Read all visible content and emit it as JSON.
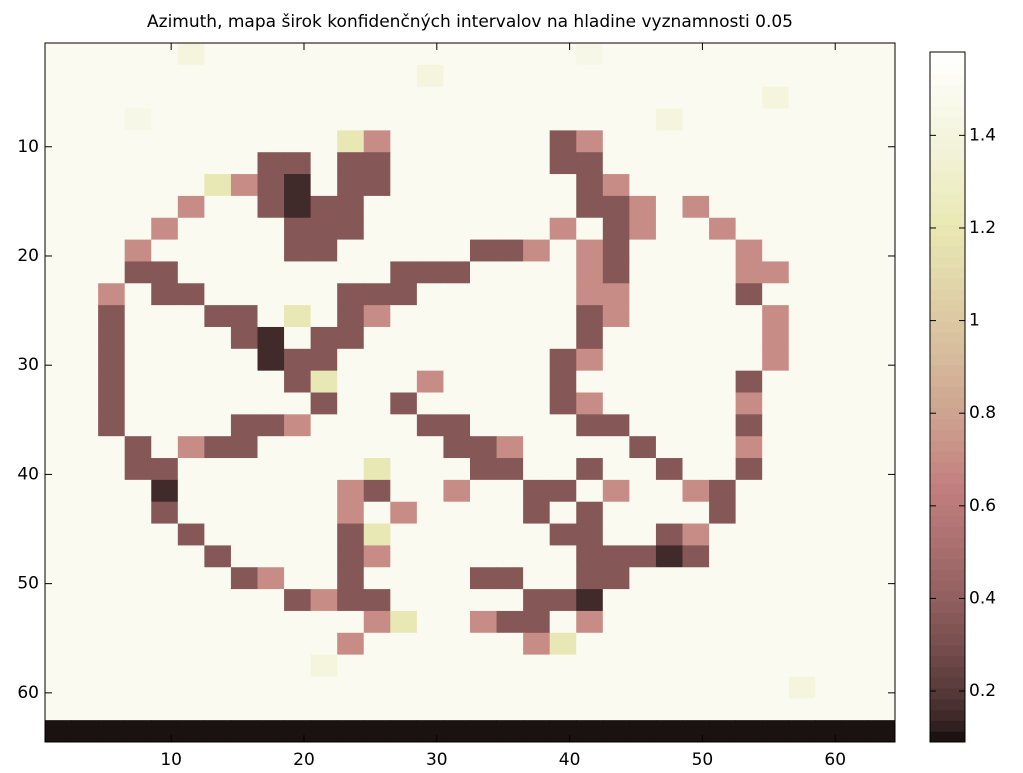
{
  "chart_data": {
    "type": "heatmap",
    "title": "Azimuth, mapa širok konfidenčných intervalov na hladine vyznamnosti 0.05",
    "colormap": "pink",
    "xlim": [
      0.5,
      64.5
    ],
    "ylim": [
      0.5,
      64.5
    ],
    "y_reversed": true,
    "xticks": [
      10,
      20,
      30,
      40,
      50,
      60
    ],
    "yticks": [
      10,
      20,
      30,
      40,
      50,
      60
    ],
    "clim": [
      0.09,
      1.58
    ],
    "cticks": [
      0.2,
      0.4,
      0.6,
      0.8,
      1,
      1.2,
      1.4
    ],
    "z": [
      [
        1.5,
        1.5,
        1.5,
        1.5,
        1.5,
        1.4,
        1.5,
        1.5,
        1.5,
        1.5,
        1.5,
        1.5,
        1.5,
        1.5,
        1.5,
        1.5,
        1.5,
        1.5,
        1.5,
        1.5,
        1.45,
        1.5,
        1.5,
        1.5,
        1.5,
        1.5,
        1.5,
        1.5,
        1.5,
        1.5,
        1.5,
        1.5
      ],
      [
        1.5,
        1.5,
        1.5,
        1.5,
        1.5,
        1.5,
        1.5,
        1.5,
        1.5,
        1.5,
        1.5,
        1.5,
        1.5,
        1.5,
        1.4,
        1.5,
        1.5,
        1.5,
        1.5,
        1.5,
        1.5,
        1.5,
        1.5,
        1.5,
        1.5,
        1.5,
        1.5,
        1.5,
        1.5,
        1.5,
        1.5,
        1.5
      ],
      [
        1.5,
        1.5,
        1.5,
        1.5,
        1.5,
        1.5,
        1.5,
        1.5,
        1.5,
        1.5,
        1.5,
        1.5,
        1.5,
        1.5,
        1.5,
        1.5,
        1.5,
        1.5,
        1.5,
        1.5,
        1.5,
        1.5,
        1.5,
        1.5,
        1.5,
        1.5,
        1.5,
        1.4,
        1.5,
        1.5,
        1.5,
        1.5
      ],
      [
        1.5,
        1.5,
        1.5,
        1.45,
        1.5,
        1.5,
        1.5,
        1.5,
        1.5,
        1.5,
        1.5,
        1.5,
        1.5,
        1.5,
        1.5,
        1.5,
        1.5,
        1.5,
        1.5,
        1.5,
        1.5,
        1.5,
        1.5,
        1.4,
        1.5,
        1.5,
        1.5,
        1.5,
        1.5,
        1.5,
        1.5,
        1.5
      ],
      [
        1.5,
        1.5,
        1.5,
        1.5,
        1.5,
        1.5,
        1.5,
        1.5,
        1.5,
        1.5,
        1.5,
        1.2,
        0.7,
        1.5,
        1.5,
        1.5,
        1.5,
        1.5,
        1.5,
        0.35,
        0.7,
        1.5,
        1.5,
        1.5,
        1.5,
        1.5,
        1.5,
        1.5,
        1.5,
        1.5,
        1.5,
        1.5
      ],
      [
        1.5,
        1.5,
        1.5,
        1.5,
        1.5,
        1.5,
        1.5,
        1.5,
        0.35,
        0.35,
        1.5,
        0.35,
        0.35,
        1.5,
        1.5,
        1.5,
        1.5,
        1.5,
        1.5,
        0.35,
        0.35,
        1.5,
        1.5,
        1.5,
        1.5,
        1.5,
        1.5,
        1.5,
        1.5,
        1.5,
        1.5,
        1.5
      ],
      [
        1.5,
        1.5,
        1.5,
        1.5,
        1.5,
        1.5,
        1.2,
        0.7,
        0.35,
        0.15,
        1.5,
        0.35,
        0.35,
        1.5,
        1.5,
        1.5,
        1.5,
        1.5,
        1.5,
        1.5,
        0.35,
        0.7,
        1.5,
        1.5,
        1.5,
        1.5,
        1.5,
        1.5,
        1.5,
        1.5,
        1.5,
        1.5
      ],
      [
        1.5,
        1.5,
        1.5,
        1.5,
        1.5,
        0.7,
        1.5,
        1.5,
        0.35,
        0.15,
        0.35,
        0.35,
        1.5,
        1.5,
        1.5,
        1.5,
        1.5,
        1.5,
        1.5,
        1.5,
        0.35,
        0.35,
        0.7,
        1.5,
        0.7,
        1.5,
        1.5,
        1.5,
        1.5,
        1.5,
        1.5,
        1.5
      ],
      [
        1.5,
        1.5,
        1.5,
        1.5,
        0.7,
        1.5,
        1.5,
        1.5,
        1.5,
        0.35,
        0.35,
        0.35,
        1.5,
        1.5,
        1.5,
        1.5,
        1.5,
        1.5,
        1.5,
        0.7,
        1.5,
        0.35,
        0.7,
        1.5,
        1.5,
        0.7,
        1.5,
        1.5,
        1.5,
        1.5,
        1.5,
        1.5
      ],
      [
        1.5,
        1.5,
        1.5,
        0.7,
        1.5,
        1.5,
        1.5,
        1.5,
        1.5,
        0.35,
        0.35,
        1.5,
        1.5,
        1.5,
        1.5,
        1.5,
        0.35,
        0.35,
        0.7,
        1.5,
        0.7,
        0.35,
        1.5,
        1.5,
        1.5,
        1.5,
        0.7,
        1.5,
        1.5,
        1.5,
        1.5,
        1.5
      ],
      [
        1.5,
        1.5,
        1.5,
        0.35,
        0.35,
        1.5,
        1.5,
        1.5,
        1.5,
        1.5,
        1.5,
        1.5,
        1.5,
        0.35,
        0.35,
        0.35,
        1.5,
        1.5,
        1.5,
        1.5,
        0.7,
        0.35,
        1.5,
        1.5,
        1.5,
        1.5,
        0.7,
        0.7,
        1.5,
        1.5,
        1.5,
        1.5
      ],
      [
        1.5,
        1.5,
        0.7,
        1.5,
        0.35,
        0.35,
        1.5,
        1.5,
        1.5,
        1.5,
        1.5,
        0.35,
        0.35,
        0.35,
        1.5,
        1.5,
        1.5,
        1.5,
        1.5,
        1.5,
        0.7,
        0.7,
        1.5,
        1.5,
        1.5,
        1.5,
        0.35,
        1.5,
        1.5,
        1.5,
        1.5,
        1.5
      ],
      [
        1.5,
        1.5,
        0.35,
        1.5,
        1.5,
        1.5,
        0.35,
        0.35,
        1.5,
        1.2,
        1.5,
        0.35,
        0.7,
        1.5,
        1.5,
        1.5,
        1.5,
        1.5,
        1.5,
        1.5,
        0.35,
        0.7,
        1.5,
        1.5,
        1.5,
        1.5,
        1.5,
        0.7,
        1.5,
        1.5,
        1.5,
        1.5
      ],
      [
        1.5,
        1.5,
        0.35,
        1.5,
        1.5,
        1.5,
        1.5,
        0.35,
        0.15,
        1.5,
        0.35,
        0.35,
        1.5,
        1.5,
        1.5,
        1.5,
        1.5,
        1.5,
        1.5,
        1.5,
        0.35,
        1.5,
        1.5,
        1.5,
        1.5,
        1.5,
        1.5,
        0.7,
        1.5,
        1.5,
        1.5,
        1.5
      ],
      [
        1.5,
        1.5,
        0.35,
        1.5,
        1.5,
        1.5,
        1.5,
        1.5,
        0.15,
        0.35,
        0.35,
        1.5,
        1.5,
        1.5,
        1.5,
        1.5,
        1.5,
        1.5,
        1.5,
        0.35,
        0.7,
        1.5,
        1.5,
        1.5,
        1.5,
        1.5,
        1.5,
        0.7,
        1.5,
        1.5,
        1.5,
        1.5
      ],
      [
        1.5,
        1.5,
        0.35,
        1.5,
        1.5,
        1.5,
        1.5,
        1.5,
        1.5,
        0.35,
        1.2,
        1.5,
        1.5,
        1.5,
        0.7,
        1.5,
        1.5,
        1.5,
        1.5,
        0.35,
        1.5,
        1.5,
        1.5,
        1.5,
        1.5,
        1.5,
        0.35,
        1.5,
        1.5,
        1.5,
        1.5,
        1.5
      ],
      [
        1.5,
        1.5,
        0.35,
        1.5,
        1.5,
        1.5,
        1.5,
        1.5,
        1.5,
        1.5,
        0.35,
        1.5,
        1.5,
        0.35,
        1.5,
        1.5,
        1.5,
        1.5,
        1.5,
        0.35,
        0.7,
        1.5,
        1.5,
        1.5,
        1.5,
        1.5,
        0.7,
        1.5,
        1.5,
        1.5,
        1.5,
        1.5
      ],
      [
        1.5,
        1.5,
        0.35,
        1.5,
        1.5,
        1.5,
        1.5,
        0.35,
        0.35,
        0.7,
        1.5,
        1.5,
        1.5,
        1.5,
        0.35,
        0.35,
        1.5,
        1.5,
        1.5,
        1.5,
        0.35,
        0.35,
        1.5,
        1.5,
        1.5,
        1.5,
        0.35,
        1.5,
        1.5,
        1.5,
        1.5,
        1.5
      ],
      [
        1.5,
        1.5,
        1.5,
        0.35,
        1.5,
        0.7,
        0.35,
        0.35,
        1.5,
        1.5,
        1.5,
        1.5,
        1.5,
        1.5,
        1.5,
        0.35,
        0.35,
        0.7,
        1.5,
        1.5,
        1.5,
        1.5,
        0.35,
        1.5,
        1.5,
        1.5,
        0.7,
        1.5,
        1.5,
        1.5,
        1.5,
        1.5
      ],
      [
        1.5,
        1.5,
        1.5,
        0.35,
        0.35,
        1.5,
        1.5,
        1.5,
        1.5,
        1.5,
        1.5,
        1.5,
        1.2,
        1.5,
        1.5,
        1.5,
        0.35,
        0.35,
        1.5,
        1.5,
        0.35,
        1.5,
        1.5,
        0.35,
        1.5,
        1.5,
        0.35,
        1.5,
        1.5,
        1.5,
        1.5,
        1.5
      ],
      [
        1.5,
        1.5,
        1.5,
        1.5,
        0.15,
        1.5,
        1.5,
        1.5,
        1.5,
        1.5,
        1.5,
        0.7,
        0.35,
        1.5,
        1.5,
        0.7,
        1.5,
        1.5,
        0.35,
        0.35,
        1.5,
        0.7,
        1.5,
        1.5,
        0.7,
        0.35,
        1.5,
        1.5,
        1.5,
        1.5,
        1.5,
        1.5
      ],
      [
        1.5,
        1.5,
        1.5,
        1.5,
        0.35,
        1.5,
        1.5,
        1.5,
        1.5,
        1.5,
        1.5,
        0.7,
        1.5,
        0.7,
        1.5,
        1.5,
        1.5,
        1.5,
        0.35,
        1.5,
        0.35,
        1.5,
        1.5,
        1.5,
        1.5,
        0.35,
        1.5,
        1.5,
        1.5,
        1.5,
        1.5,
        1.5
      ],
      [
        1.5,
        1.5,
        1.5,
        1.5,
        1.5,
        0.35,
        1.5,
        1.5,
        1.5,
        1.5,
        1.5,
        0.35,
        1.2,
        1.5,
        1.5,
        1.5,
        1.5,
        1.5,
        1.5,
        0.35,
        0.35,
        1.5,
        1.5,
        0.35,
        0.7,
        1.5,
        1.5,
        1.5,
        1.5,
        1.5,
        1.5,
        1.5
      ],
      [
        1.5,
        1.5,
        1.5,
        1.5,
        1.5,
        1.5,
        0.35,
        1.5,
        1.5,
        1.5,
        1.5,
        0.35,
        0.7,
        1.5,
        1.5,
        1.5,
        1.5,
        1.5,
        1.5,
        1.5,
        0.35,
        0.35,
        0.35,
        0.15,
        0.35,
        1.5,
        1.5,
        1.5,
        1.5,
        1.5,
        1.5,
        1.5
      ],
      [
        1.5,
        1.5,
        1.5,
        1.5,
        1.5,
        1.5,
        1.5,
        0.35,
        0.7,
        1.5,
        1.5,
        0.35,
        1.5,
        1.5,
        1.5,
        1.5,
        0.35,
        0.35,
        1.5,
        1.5,
        0.35,
        0.35,
        1.5,
        1.5,
        1.5,
        1.5,
        1.5,
        1.5,
        1.5,
        1.5,
        1.5,
        1.5
      ],
      [
        1.5,
        1.5,
        1.5,
        1.5,
        1.5,
        1.5,
        1.5,
        1.5,
        1.5,
        0.35,
        0.7,
        0.35,
        0.35,
        1.5,
        1.5,
        1.5,
        1.5,
        1.5,
        0.35,
        0.35,
        0.15,
        1.5,
        1.5,
        1.5,
        1.5,
        1.5,
        1.5,
        1.5,
        1.5,
        1.5,
        1.5,
        1.5
      ],
      [
        1.5,
        1.5,
        1.5,
        1.5,
        1.5,
        1.5,
        1.5,
        1.5,
        1.5,
        1.5,
        1.5,
        1.5,
        0.7,
        1.2,
        1.5,
        1.5,
        0.7,
        0.35,
        0.35,
        1.5,
        0.7,
        1.5,
        1.5,
        1.5,
        1.5,
        1.5,
        1.5,
        1.5,
        1.5,
        1.5,
        1.5,
        1.5
      ],
      [
        1.5,
        1.5,
        1.5,
        1.5,
        1.5,
        1.5,
        1.5,
        1.5,
        1.5,
        1.5,
        1.5,
        0.7,
        1.5,
        1.5,
        1.5,
        1.5,
        1.5,
        1.5,
        0.7,
        1.2,
        1.5,
        1.5,
        1.5,
        1.5,
        1.5,
        1.5,
        1.5,
        1.5,
        1.5,
        1.5,
        1.5,
        1.5
      ],
      [
        1.5,
        1.5,
        1.5,
        1.5,
        1.5,
        1.5,
        1.5,
        1.5,
        1.5,
        1.5,
        1.4,
        1.5,
        1.5,
        1.5,
        1.5,
        1.5,
        1.5,
        1.5,
        1.5,
        1.5,
        1.5,
        1.5,
        1.5,
        1.5,
        1.5,
        1.5,
        1.5,
        1.5,
        1.5,
        1.5,
        1.5,
        1.5
      ],
      [
        1.5,
        1.5,
        1.5,
        1.5,
        1.5,
        1.5,
        1.5,
        1.5,
        1.5,
        1.5,
        1.5,
        1.5,
        1.5,
        1.5,
        1.5,
        1.5,
        1.5,
        1.5,
        1.5,
        1.5,
        1.5,
        1.5,
        1.5,
        1.5,
        1.5,
        1.5,
        1.5,
        1.5,
        1.4,
        1.5,
        1.5,
        1.5
      ],
      [
        1.5,
        1.5,
        1.5,
        1.5,
        1.5,
        1.5,
        1.5,
        1.5,
        1.5,
        1.5,
        1.5,
        1.5,
        1.5,
        1.5,
        1.5,
        1.5,
        1.5,
        1.5,
        1.5,
        1.5,
        1.5,
        1.5,
        1.5,
        1.5,
        1.5,
        1.5,
        1.5,
        1.5,
        1.5,
        1.5,
        1.5,
        1.5
      ],
      [
        0.1,
        0.1,
        0.1,
        0.1,
        0.1,
        0.1,
        0.1,
        0.1,
        0.1,
        0.1,
        0.1,
        0.1,
        0.1,
        0.1,
        0.1,
        0.1,
        0.1,
        0.1,
        0.1,
        0.1,
        0.1,
        0.1,
        0.1,
        0.1,
        0.1,
        0.1,
        0.1,
        0.1,
        0.1,
        0.1,
        0.1,
        0.1
      ]
    ]
  }
}
